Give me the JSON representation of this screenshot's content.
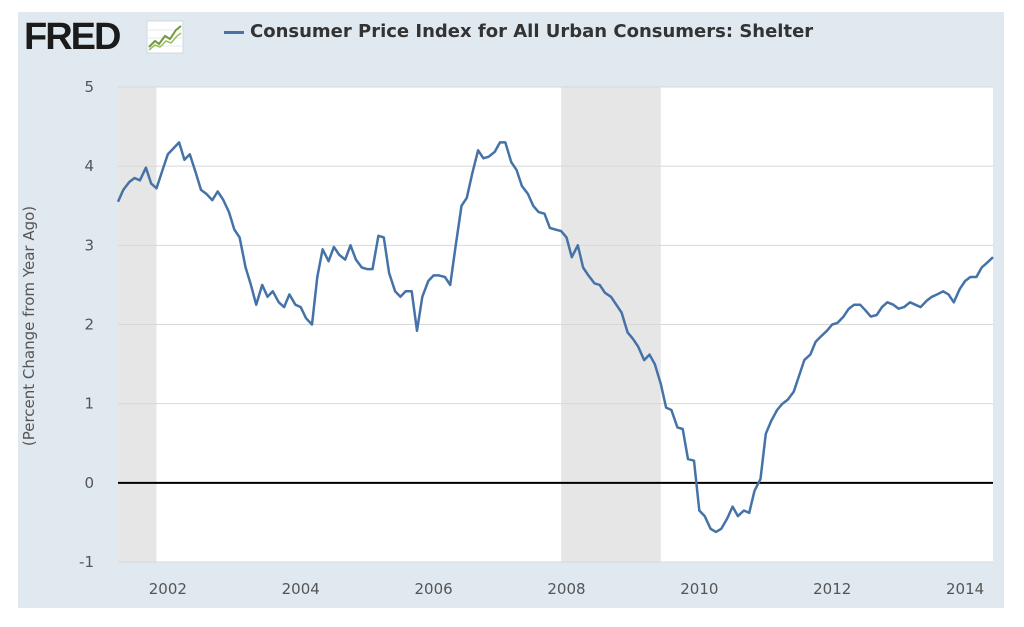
{
  "header": {
    "logo_text": "FRED",
    "logo_icon": "trend-line-icon",
    "series_label": "Consumer Price Index for All Urban Consumers: Shelter",
    "series_color": "#4572a7"
  },
  "chart_data": {
    "type": "line",
    "title": "",
    "xlabel": "",
    "ylabel": "(Percent Change from Year Ago)",
    "xlim": [
      2001.25,
      2014.42
    ],
    "ylim": [
      -1,
      5
    ],
    "yticks": [
      "-1",
      "0",
      "1",
      "2",
      "3",
      "4",
      "5"
    ],
    "xticks": [
      "2002",
      "2004",
      "2006",
      "2008",
      "2010",
      "2012",
      "2014"
    ],
    "grid": true,
    "background": "#ffffff",
    "zero_line_color": "#000000",
    "recessions": [
      [
        2001.25,
        2001.83
      ],
      [
        2007.92,
        2009.42
      ]
    ],
    "recession_color": "#e6e6e6",
    "series": [
      {
        "name": "Consumer Price Index for All Urban Consumers: Shelter",
        "color": "#4572a7",
        "x": [
          2001.25,
          2001.33,
          2001.42,
          2001.5,
          2001.58,
          2001.67,
          2001.75,
          2001.83,
          2001.92,
          2002.0,
          2002.08,
          2002.17,
          2002.25,
          2002.33,
          2002.42,
          2002.5,
          2002.58,
          2002.67,
          2002.75,
          2002.83,
          2002.92,
          2003.0,
          2003.08,
          2003.17,
          2003.25,
          2003.33,
          2003.42,
          2003.5,
          2003.58,
          2003.67,
          2003.75,
          2003.83,
          2003.92,
          2004.0,
          2004.08,
          2004.17,
          2004.25,
          2004.33,
          2004.42,
          2004.5,
          2004.58,
          2004.67,
          2004.75,
          2004.83,
          2004.92,
          2005.0,
          2005.08,
          2005.17,
          2005.25,
          2005.33,
          2005.42,
          2005.5,
          2005.58,
          2005.67,
          2005.75,
          2005.83,
          2005.92,
          2006.0,
          2006.08,
          2006.17,
          2006.25,
          2006.33,
          2006.42,
          2006.5,
          2006.58,
          2006.67,
          2006.75,
          2006.83,
          2006.92,
          2007.0,
          2007.08,
          2007.17,
          2007.25,
          2007.33,
          2007.42,
          2007.5,
          2007.58,
          2007.67,
          2007.75,
          2007.83,
          2007.92,
          2008.0,
          2008.08,
          2008.17,
          2008.25,
          2008.33,
          2008.42,
          2008.5,
          2008.58,
          2008.67,
          2008.75,
          2008.83,
          2008.92,
          2009.0,
          2009.08,
          2009.17,
          2009.25,
          2009.33,
          2009.42,
          2009.5,
          2009.58,
          2009.67,
          2009.75,
          2009.83,
          2009.92,
          2010.0,
          2010.08,
          2010.17,
          2010.25,
          2010.33,
          2010.42,
          2010.5,
          2010.58,
          2010.67,
          2010.75,
          2010.83,
          2010.92,
          2011.0,
          2011.08,
          2011.17,
          2011.25,
          2011.33,
          2011.42,
          2011.5,
          2011.58,
          2011.67,
          2011.75,
          2011.83,
          2011.92,
          2012.0,
          2012.08,
          2012.17,
          2012.25,
          2012.33,
          2012.42,
          2012.5,
          2012.58,
          2012.67,
          2012.75,
          2012.83,
          2012.92,
          2013.0,
          2013.08,
          2013.17,
          2013.25,
          2013.33,
          2013.42,
          2013.5,
          2013.58,
          2013.67,
          2013.75,
          2013.83,
          2013.92,
          2014.0,
          2014.08,
          2014.17,
          2014.25,
          2014.33,
          2014.42
        ],
        "y": [
          3.55,
          3.7,
          3.8,
          3.85,
          3.82,
          3.98,
          3.78,
          3.72,
          3.95,
          4.15,
          4.22,
          4.3,
          4.08,
          4.15,
          3.92,
          3.7,
          3.65,
          3.57,
          3.68,
          3.58,
          3.42,
          3.2,
          3.1,
          2.72,
          2.5,
          2.25,
          2.5,
          2.35,
          2.42,
          2.28,
          2.22,
          2.38,
          2.25,
          2.22,
          2.08,
          2.0,
          2.6,
          2.95,
          2.8,
          2.98,
          2.88,
          2.82,
          3.0,
          2.82,
          2.72,
          2.7,
          2.7,
          3.12,
          3.1,
          2.65,
          2.42,
          2.35,
          2.42,
          2.42,
          1.92,
          2.35,
          2.55,
          2.62,
          2.62,
          2.6,
          2.5,
          2.98,
          3.5,
          3.6,
          3.9,
          4.2,
          4.1,
          4.12,
          4.18,
          4.3,
          4.3,
          4.05,
          3.95,
          3.75,
          3.65,
          3.5,
          3.42,
          3.4,
          3.22,
          3.2,
          3.18,
          3.1,
          2.85,
          3.0,
          2.72,
          2.62,
          2.52,
          2.5,
          2.4,
          2.35,
          2.25,
          2.15,
          1.9,
          1.82,
          1.72,
          1.55,
          1.62,
          1.5,
          1.25,
          0.95,
          0.92,
          0.7,
          0.68,
          0.3,
          0.28,
          -0.35,
          -0.42,
          -0.58,
          -0.62,
          -0.58,
          -0.45,
          -0.3,
          -0.42,
          -0.35,
          -0.38,
          -0.1,
          0.05,
          0.62,
          0.78,
          0.92,
          1.0,
          1.05,
          1.15,
          1.35,
          1.55,
          1.62,
          1.78,
          1.85,
          1.92,
          2.0,
          2.02,
          2.1,
          2.2,
          2.25,
          2.25,
          2.18,
          2.1,
          2.12,
          2.22,
          2.28,
          2.25,
          2.2,
          2.22,
          2.28,
          2.25,
          2.22,
          2.3,
          2.35,
          2.38,
          2.42,
          2.38,
          2.28,
          2.45,
          2.55,
          2.6,
          2.6,
          2.72,
          2.78,
          2.85
        ]
      }
    ]
  }
}
